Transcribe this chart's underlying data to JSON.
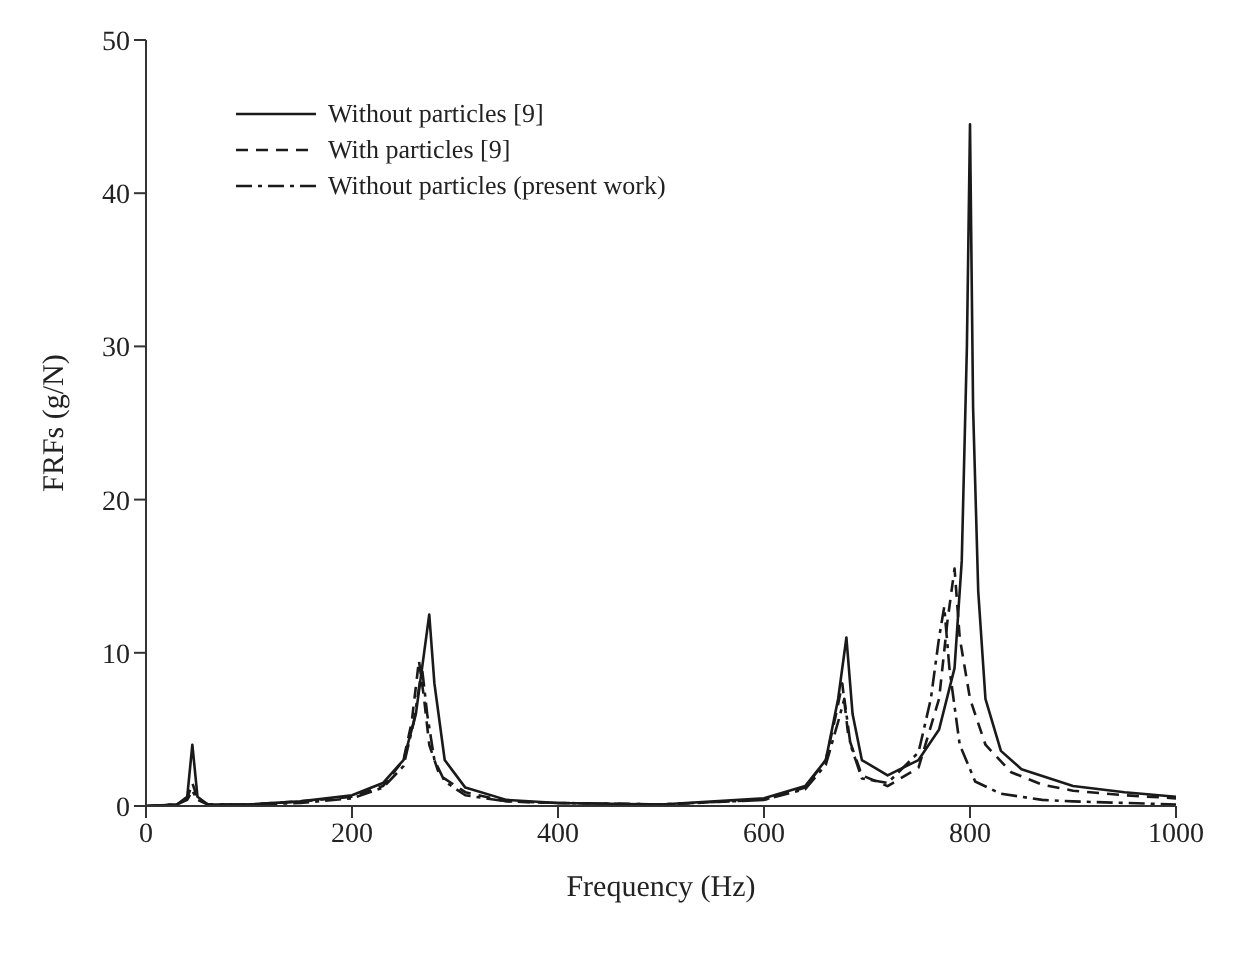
{
  "chart_data": {
    "type": "line",
    "xlabel": "Frequency (Hz)",
    "ylabel": "FRFs (g/N)",
    "xlim": [
      0,
      1000
    ],
    "ylim": [
      0,
      50
    ],
    "xticks": [
      0,
      200,
      400,
      600,
      800,
      1000
    ],
    "yticks": [
      0,
      10,
      20,
      30,
      40,
      50
    ],
    "legend": "top left",
    "grid": false,
    "marker": "none",
    "series": [
      {
        "name": "Without particles [9]",
        "color": "#1a1a1a",
        "line_style": "solid",
        "x": [
          0,
          30,
          40,
          45,
          50,
          60,
          100,
          150,
          200,
          230,
          250,
          262,
          270,
          275,
          280,
          290,
          310,
          350,
          400,
          500,
          600,
          640,
          660,
          672,
          680,
          686,
          695,
          720,
          750,
          770,
          785,
          792,
          797,
          800,
          803,
          808,
          815,
          830,
          850,
          900,
          950,
          1000
        ],
        "values": [
          0,
          0.1,
          0.6,
          4,
          0.6,
          0.1,
          0.1,
          0.3,
          0.7,
          1.5,
          3,
          6,
          10,
          12.5,
          8,
          3,
          1.2,
          0.4,
          0.2,
          0.1,
          0.5,
          1.3,
          3,
          7,
          11,
          6,
          3,
          2,
          3,
          5,
          9,
          16,
          30,
          44.5,
          26,
          14,
          7,
          3.6,
          2.4,
          1.3,
          0.9,
          0.6
        ]
      },
      {
        "name": "With particles [9]",
        "color": "#1a1a1a",
        "line_style": "dashed",
        "x": [
          0,
          30,
          40,
          45,
          50,
          60,
          100,
          150,
          200,
          230,
          250,
          258,
          265,
          270,
          275,
          285,
          310,
          350,
          400,
          500,
          600,
          640,
          660,
          670,
          676,
          682,
          695,
          720,
          750,
          770,
          778,
          785,
          790,
          800,
          815,
          840,
          870,
          900,
          950,
          1000
        ],
        "values": [
          0,
          0.1,
          0.5,
          1.5,
          0.5,
          0.1,
          0.1,
          0.3,
          0.6,
          1.3,
          3,
          5.5,
          9.5,
          7,
          4,
          2,
          0.9,
          0.3,
          0.2,
          0.1,
          0.4,
          1.2,
          3,
          6,
          8,
          4.5,
          2,
          1.3,
          2.5,
          7,
          12,
          15.5,
          11,
          7,
          4,
          2.2,
          1.4,
          1,
          0.7,
          0.5
        ]
      },
      {
        "name": "Without particles (present work)",
        "color": "#1a1a1a",
        "line_style": "dashdot",
        "x": [
          0,
          30,
          40,
          45,
          50,
          60,
          100,
          150,
          200,
          230,
          250,
          260,
          268,
          273,
          280,
          290,
          310,
          350,
          400,
          500,
          600,
          640,
          660,
          672,
          678,
          684,
          695,
          720,
          750,
          762,
          770,
          775,
          780,
          790,
          805,
          830,
          870,
          900,
          950,
          1000
        ],
        "values": [
          0,
          0.1,
          0.4,
          1,
          0.4,
          0.1,
          0.1,
          0.2,
          0.5,
          1.2,
          2.6,
          5.5,
          9,
          6,
          3,
          1.6,
          0.7,
          0.3,
          0.2,
          0.1,
          0.4,
          1.1,
          2.7,
          5.5,
          7,
          4,
          1.8,
          1.5,
          3.5,
          7,
          11,
          13,
          9,
          4,
          1.6,
          0.8,
          0.4,
          0.3,
          0.2,
          0.1
        ]
      }
    ]
  }
}
